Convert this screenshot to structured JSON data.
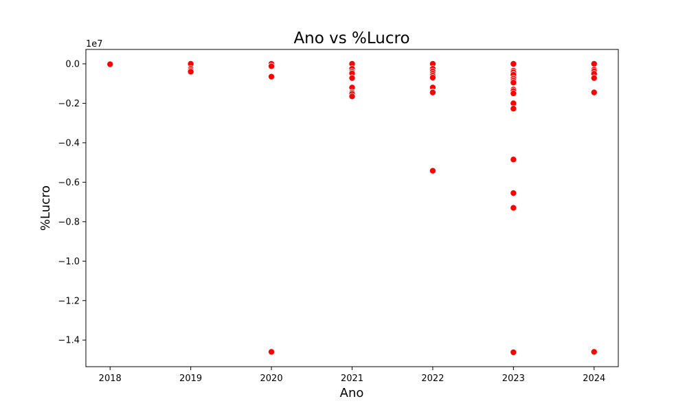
{
  "chart_data": {
    "type": "scatter",
    "title": "Ano vs %Lucro",
    "xlabel": "Ano",
    "ylabel": "%Lucro",
    "y_offset_label": "1e7",
    "y_scale_factor": 10000000,
    "xlim": [
      2017.7,
      2024.3
    ],
    "ylim": [
      -15350000,
      730000
    ],
    "x_ticks": [
      2018,
      2019,
      2020,
      2021,
      2022,
      2023,
      2024
    ],
    "x_tick_labels": [
      "2018",
      "2019",
      "2020",
      "2021",
      "2022",
      "2023",
      "2024"
    ],
    "y_ticks": [
      0,
      -2000000,
      -4000000,
      -6000000,
      -8000000,
      -10000000,
      -12000000,
      -14000000
    ],
    "y_tick_labels": [
      "0.0",
      "−0.2",
      "−0.4",
      "−0.6",
      "−0.8",
      "−1.0",
      "−1.2",
      "−1.4"
    ],
    "grid": false,
    "marker_color": "#ff0000",
    "series": [
      {
        "x": [
          2018,
          2018,
          2019,
          2019,
          2019,
          2019,
          2020,
          2020,
          2020,
          2020,
          2021,
          2021,
          2021,
          2021,
          2021,
          2021,
          2021,
          2021,
          2021,
          2022,
          2022,
          2022,
          2022,
          2022,
          2022,
          2022,
          2022,
          2022,
          2022,
          2023,
          2023,
          2023,
          2023,
          2023,
          2023,
          2023,
          2023,
          2023,
          2023,
          2023,
          2023,
          2023,
          2023,
          2023,
          2023,
          2023,
          2024,
          2024,
          2024,
          2024,
          2024,
          2024,
          2024
        ],
        "y": [
          0,
          -20000,
          0,
          -250000,
          -330000,
          -400000,
          0,
          -120000,
          -650000,
          -14600000,
          0,
          -250000,
          -400000,
          -480000,
          -720000,
          -1200000,
          -1450000,
          -1520000,
          -1650000,
          0,
          -250000,
          -380000,
          -500000,
          -600000,
          -700000,
          -1200000,
          -1430000,
          -1450000,
          -5420000,
          0,
          -350000,
          -430000,
          -550000,
          -750000,
          -850000,
          -950000,
          -1300000,
          -1380000,
          -1500000,
          -2000000,
          -2270000,
          -4850000,
          -6550000,
          -7300000,
          -14600000,
          -14620000,
          0,
          -300000,
          -380000,
          -500000,
          -720000,
          -1450000,
          -14600000
        ]
      }
    ]
  }
}
